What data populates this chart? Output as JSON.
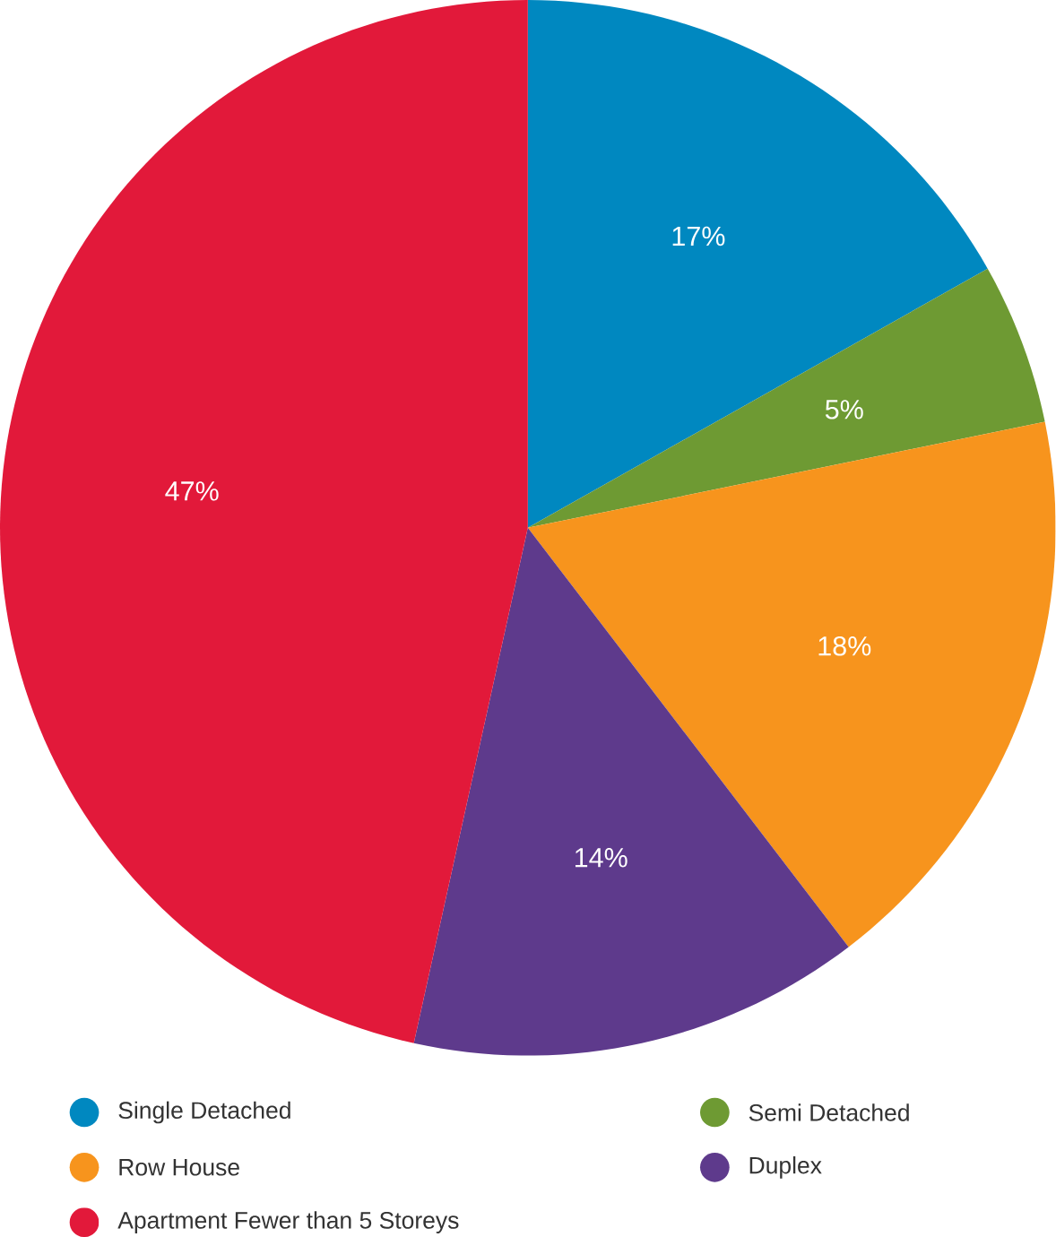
{
  "chart_data": {
    "type": "pie",
    "categories": [
      "Single Detached",
      "Semi Detached",
      "Row House",
      "Duplex",
      "Apartment Fewer than 5 Storeys"
    ],
    "values": [
      17,
      5,
      18,
      14,
      47
    ],
    "colors": [
      "#0088c0",
      "#6e9a33",
      "#f7941d",
      "#5e3a8c",
      "#e2193a"
    ],
    "value_labels": [
      "17%",
      "5%",
      "18%",
      "14%",
      "47%"
    ],
    "legend": "bottom"
  }
}
